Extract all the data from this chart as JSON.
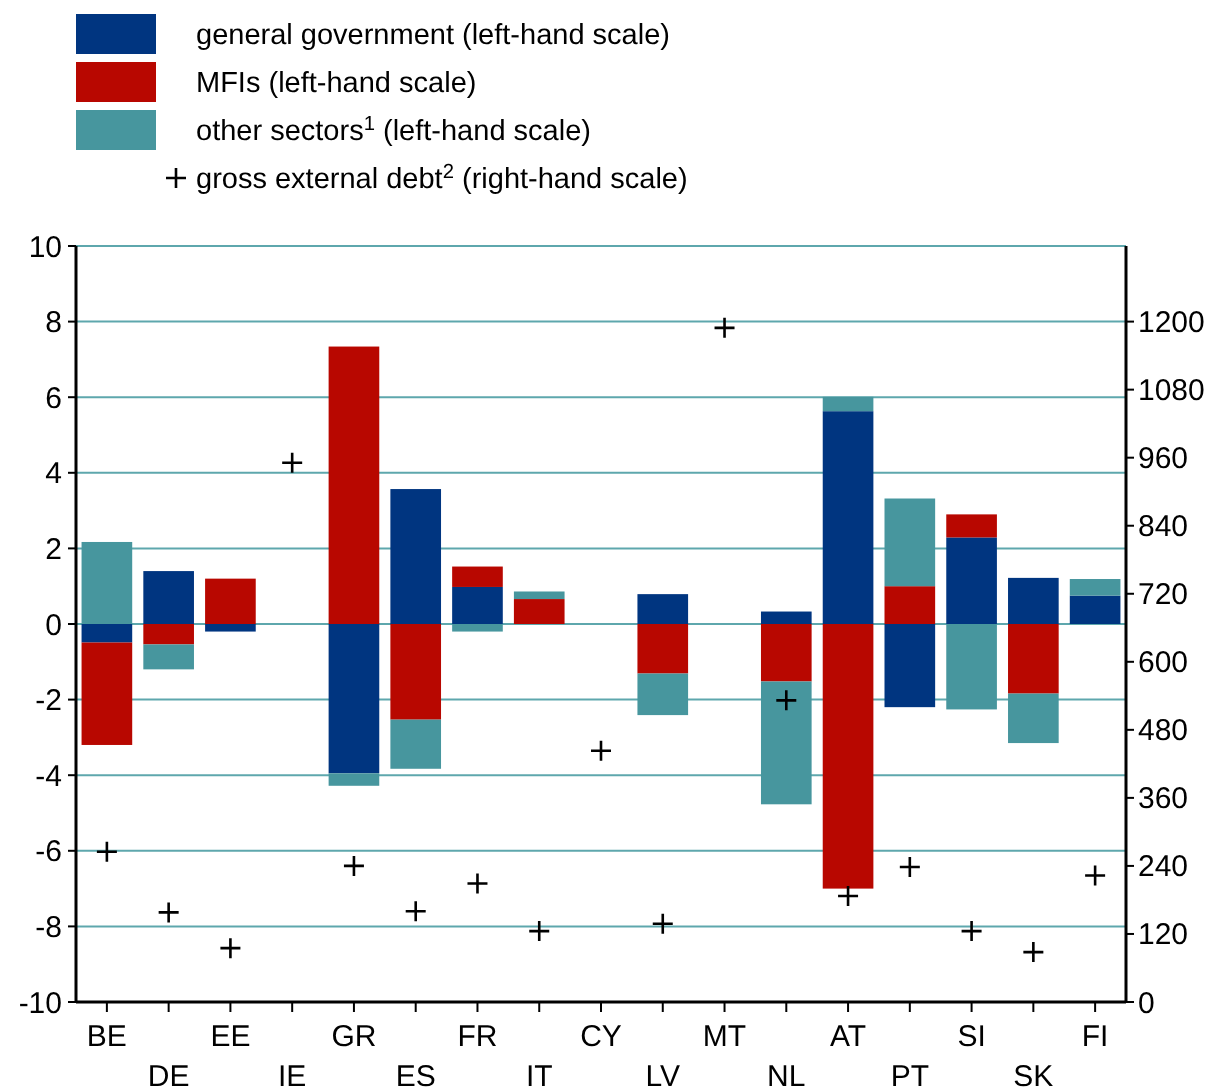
{
  "chart_data": {
    "type": "bar",
    "stacked": true,
    "categories": [
      "BE",
      "DE",
      "EE",
      "IE",
      "GR",
      "ES",
      "FR",
      "IT",
      "CY",
      "LV",
      "MT",
      "NL",
      "AT",
      "PT",
      "SI",
      "SK",
      "FI"
    ],
    "series": [
      {
        "name": "general government (left-hand scale)",
        "color": "#003580",
        "values": [
          -0.49,
          1.4,
          -0.2,
          null,
          -3.95,
          3.57,
          0.98,
          0,
          null,
          0.79,
          null,
          0.33,
          5.63,
          -2.2,
          2.29,
          1.22,
          0.75
        ]
      },
      {
        "name": "MFIs (left-hand scale)",
        "color": "#b80700",
        "values": [
          -2.71,
          -0.54,
          1.2,
          null,
          7.34,
          -2.53,
          0.54,
          0.66,
          null,
          -1.31,
          null,
          -1.52,
          -7.0,
          1.0,
          0.61,
          -1.84,
          0
        ]
      },
      {
        "name": "other sectors$^{1}$ (left-hand scale)",
        "color": "#47969e",
        "values": [
          2.17,
          -0.66,
          0,
          null,
          -0.33,
          -1.3,
          -0.2,
          0.2,
          null,
          -1.1,
          null,
          -3.25,
          0.38,
          2.32,
          -2.26,
          -1.31,
          0.44
        ]
      },
      {
        "name": "gross external debt$^{2}$ (right-hand scale)",
        "type": "scatter",
        "axis": "y2",
        "marker": "cross",
        "color": "#000000",
        "values": [
          265,
          158,
          95,
          951,
          240,
          160,
          209,
          125,
          443,
          138,
          1189,
          532,
          187,
          238,
          125,
          88,
          223
        ]
      }
    ],
    "ylim": [
      -10,
      10
    ],
    "yticks": [
      -10,
      -8,
      -6,
      -4,
      -2,
      0,
      2,
      4,
      6,
      8,
      10
    ],
    "y2lim": [
      0,
      1333.33
    ],
    "y2ticks": [
      0,
      120,
      240,
      360,
      480,
      600,
      720,
      840,
      960,
      1080,
      1200
    ],
    "grid": "y",
    "legend": "top left"
  }
}
